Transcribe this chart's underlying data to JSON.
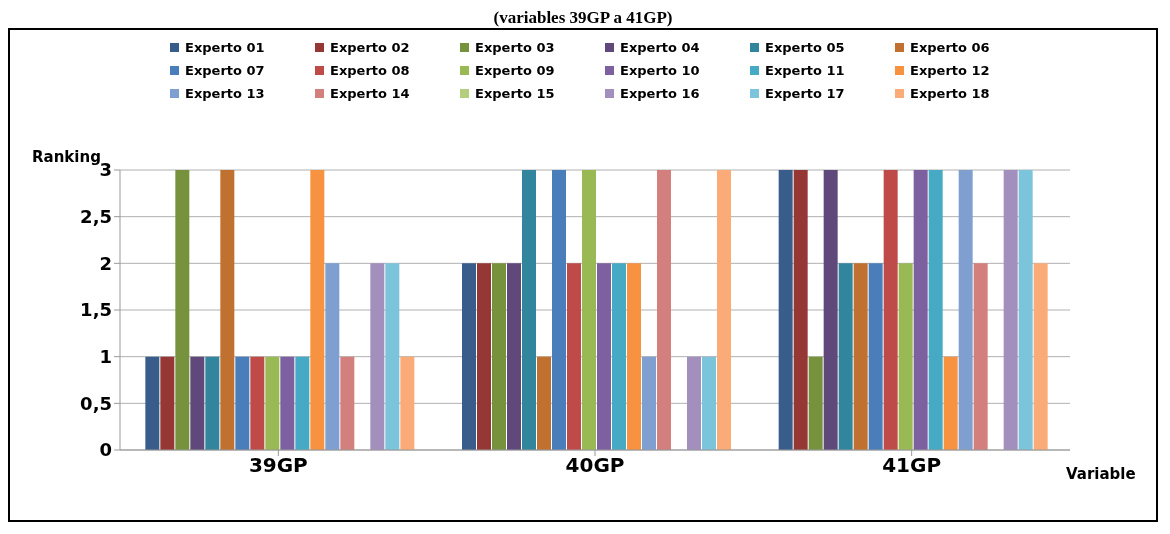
{
  "chart_data": {
    "type": "bar",
    "title": "(variables 39GP a 41GP)",
    "xlabel": "Variable",
    "ylabel": "Ranking",
    "categories": [
      "39GP",
      "40GP",
      "41GP"
    ],
    "series": [
      {
        "name": "Experto 01",
        "color": "#385d8a",
        "values": [
          1,
          2,
          3
        ]
      },
      {
        "name": "Experto 02",
        "color": "#953735",
        "values": [
          1,
          2,
          3
        ]
      },
      {
        "name": "Experto 03",
        "color": "#76923c",
        "values": [
          3,
          2,
          1
        ]
      },
      {
        "name": "Experto 04",
        "color": "#5f497a",
        "values": [
          1,
          2,
          3
        ]
      },
      {
        "name": "Experto 05",
        "color": "#31859c",
        "values": [
          1,
          3,
          2
        ]
      },
      {
        "name": "Experto 06",
        "color": "#c0712f",
        "values": [
          3,
          1,
          2
        ]
      },
      {
        "name": "Experto 07",
        "color": "#4a7ebb",
        "values": [
          1,
          3,
          2
        ]
      },
      {
        "name": "Experto 08",
        "color": "#be4b48",
        "values": [
          1,
          2,
          3
        ]
      },
      {
        "name": "Experto 09",
        "color": "#98b954",
        "values": [
          1,
          3,
          2
        ]
      },
      {
        "name": "Experto 10",
        "color": "#7d60a0",
        "values": [
          1,
          2,
          3
        ]
      },
      {
        "name": "Experto 11",
        "color": "#46aac5",
        "values": [
          1,
          2,
          3
        ]
      },
      {
        "name": "Experto 12",
        "color": "#f69240",
        "values": [
          3,
          2,
          1
        ]
      },
      {
        "name": "Experto 13",
        "color": "#7f9fd0",
        "values": [
          2,
          1,
          3
        ]
      },
      {
        "name": "Experto 14",
        "color": "#d37f7d",
        "values": [
          1,
          3,
          2
        ]
      },
      {
        "name": "Experto 15",
        "color": "#b3cf7e",
        "values": [
          0,
          0,
          0
        ]
      },
      {
        "name": "Experto 16",
        "color": "#a38fbd",
        "values": [
          2,
          1,
          3
        ]
      },
      {
        "name": "Experto 17",
        "color": "#7cc4db",
        "values": [
          2,
          1,
          3
        ]
      },
      {
        "name": "Experto 18",
        "color": "#fbab78",
        "values": [
          1,
          3,
          2
        ]
      }
    ],
    "ylim": [
      0,
      3
    ],
    "yticks": [
      0,
      {
        "value": 0.5,
        "label": "0,5"
      },
      1,
      {
        "value": 1.5,
        "label": "1,5"
      },
      2,
      {
        "value": 2.5,
        "label": "2,5"
      },
      3
    ],
    "grid": "y",
    "legend": "top"
  }
}
